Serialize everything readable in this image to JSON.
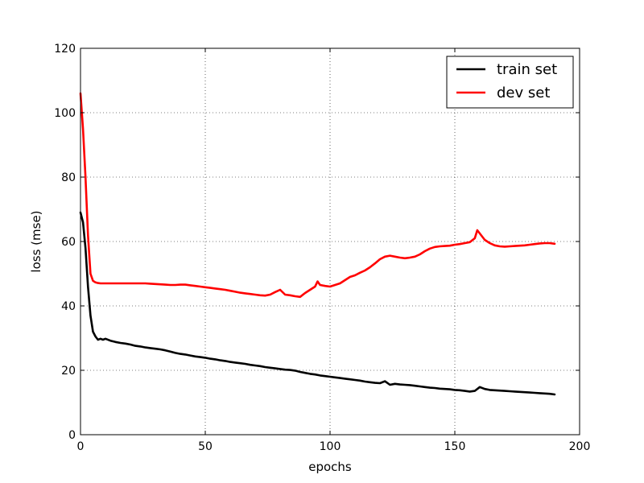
{
  "chart_data": {
    "type": "line",
    "title": "",
    "xlabel": "epochs",
    "ylabel": "loss (mse)",
    "xlim": [
      0,
      200
    ],
    "ylim": [
      0,
      120
    ],
    "xticks": [
      0,
      50,
      100,
      150,
      200
    ],
    "yticks": [
      0,
      20,
      40,
      60,
      80,
      100,
      120
    ],
    "grid": true,
    "legend_position": "top-right",
    "series": [
      {
        "name": "train set",
        "color": "#000000",
        "x": [
          0,
          1,
          2,
          3,
          4,
          5,
          6,
          7,
          8,
          9,
          10,
          12,
          14,
          16,
          18,
          20,
          22,
          24,
          26,
          28,
          30,
          32,
          34,
          36,
          38,
          40,
          42,
          44,
          46,
          48,
          50,
          52,
          54,
          56,
          58,
          60,
          62,
          64,
          66,
          68,
          70,
          72,
          74,
          76,
          78,
          80,
          82,
          84,
          86,
          88,
          90,
          92,
          94,
          96,
          98,
          100,
          102,
          104,
          106,
          108,
          110,
          112,
          114,
          116,
          118,
          120,
          122,
          124,
          126,
          128,
          130,
          132,
          134,
          136,
          138,
          140,
          142,
          144,
          146,
          148,
          150,
          152,
          154,
          156,
          158,
          160,
          162,
          164,
          166,
          168,
          170,
          172,
          174,
          176,
          178,
          180,
          182,
          184,
          186,
          188,
          190
        ],
        "y": [
          69,
          66,
          58,
          46,
          37,
          32,
          30.5,
          29.5,
          29.8,
          29.5,
          29.8,
          29.2,
          28.8,
          28.5,
          28.3,
          28,
          27.6,
          27.4,
          27.1,
          26.9,
          26.7,
          26.5,
          26.2,
          25.8,
          25.4,
          25.1,
          24.9,
          24.6,
          24.3,
          24.1,
          23.9,
          23.6,
          23.4,
          23.1,
          22.9,
          22.6,
          22.4,
          22.2,
          22,
          21.7,
          21.5,
          21.3,
          21,
          20.8,
          20.6,
          20.4,
          20.2,
          20.1,
          19.9,
          19.5,
          19.2,
          18.9,
          18.7,
          18.4,
          18.2,
          18,
          17.8,
          17.6,
          17.4,
          17.2,
          17,
          16.8,
          16.5,
          16.3,
          16.1,
          16,
          16.6,
          15.5,
          15.8,
          15.6,
          15.5,
          15.4,
          15.2,
          15,
          14.8,
          14.6,
          14.5,
          14.3,
          14.2,
          14.1,
          13.9,
          13.8,
          13.6,
          13.4,
          13.6,
          14.8,
          14.2,
          13.9,
          13.8,
          13.7,
          13.6,
          13.5,
          13.4,
          13.3,
          13.2,
          13.1,
          13,
          12.9,
          12.8,
          12.7,
          12.5
        ]
      },
      {
        "name": "dev set",
        "color": "#ff0000",
        "x": [
          0,
          1,
          2,
          3,
          4,
          5,
          6,
          7,
          8,
          9,
          10,
          12,
          14,
          16,
          18,
          20,
          22,
          24,
          26,
          28,
          30,
          32,
          34,
          36,
          38,
          40,
          42,
          44,
          46,
          48,
          50,
          52,
          54,
          56,
          58,
          60,
          62,
          64,
          66,
          68,
          70,
          72,
          74,
          76,
          78,
          80,
          82,
          84,
          86,
          88,
          90,
          92,
          94,
          95,
          96,
          98,
          100,
          102,
          104,
          106,
          108,
          110,
          112,
          114,
          116,
          118,
          120,
          122,
          124,
          126,
          128,
          130,
          132,
          134,
          136,
          138,
          140,
          142,
          144,
          146,
          148,
          150,
          152,
          154,
          156,
          158,
          159,
          160,
          162,
          164,
          166,
          168,
          170,
          172,
          174,
          176,
          178,
          180,
          182,
          184,
          186,
          188,
          190
        ],
        "y": [
          106,
          95,
          80,
          62,
          50,
          47.8,
          47.3,
          47.1,
          47,
          47,
          47,
          47,
          47,
          47,
          47,
          47,
          47,
          47,
          47,
          46.9,
          46.8,
          46.7,
          46.6,
          46.5,
          46.5,
          46.6,
          46.6,
          46.4,
          46.2,
          46,
          45.8,
          45.6,
          45.4,
          45.2,
          45,
          44.7,
          44.4,
          44.1,
          43.9,
          43.7,
          43.5,
          43.3,
          43.2,
          43.5,
          44.3,
          45,
          43.5,
          43.3,
          43,
          42.8,
          44,
          45,
          46,
          47.6,
          46.5,
          46.2,
          46,
          46.5,
          47,
          48,
          49,
          49.5,
          50.3,
          51,
          52,
          53.2,
          54.5,
          55.3,
          55.6,
          55.3,
          55,
          54.8,
          55,
          55.3,
          56,
          57,
          57.8,
          58.3,
          58.5,
          58.6,
          58.7,
          59,
          59.2,
          59.5,
          59.8,
          61,
          63.5,
          62.5,
          60.5,
          59.5,
          58.8,
          58.5,
          58.4,
          58.5,
          58.6,
          58.7,
          58.8,
          59,
          59.2,
          59.4,
          59.5,
          59.5,
          59.3
        ]
      }
    ]
  }
}
